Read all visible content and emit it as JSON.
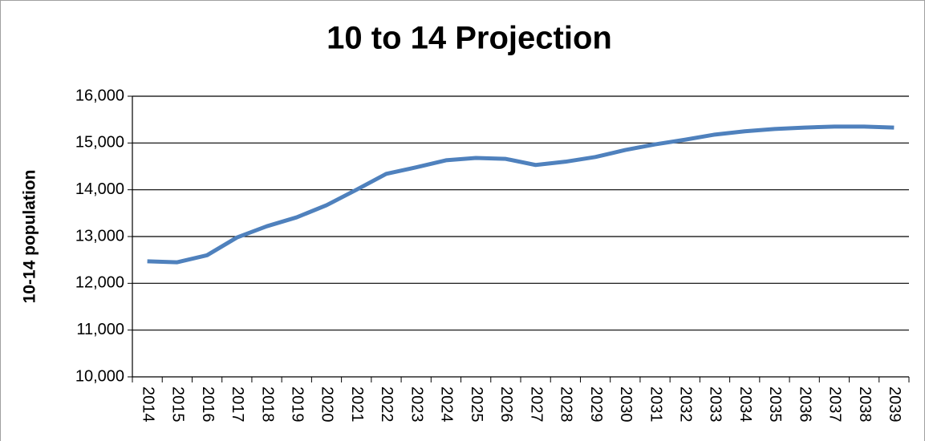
{
  "chart_data": {
    "type": "line",
    "title": "10 to 14 Projection",
    "y_label": "10-14 population",
    "categories": [
      "2014",
      "2015",
      "2016",
      "2017",
      "2018",
      "2019",
      "2020",
      "2021",
      "2022",
      "2023",
      "2024",
      "2025",
      "2026",
      "2027",
      "2028",
      "2029",
      "2030",
      "2031",
      "2032",
      "2033",
      "2034",
      "2035",
      "2036",
      "2037",
      "2038",
      "2039"
    ],
    "series": [
      {
        "name": "10-14 population",
        "color": "#4f81bd",
        "values": [
          12470,
          12450,
          12600,
          12980,
          13220,
          13410,
          13670,
          14000,
          14340,
          14480,
          14630,
          14680,
          14660,
          14530,
          14600,
          14700,
          14850,
          14970,
          15070,
          15180,
          15250,
          15300,
          15330,
          15350,
          15350,
          15330
        ]
      }
    ],
    "ylim": [
      10000,
      16000
    ],
    "yticks": [
      {
        "value": 10000,
        "label": "10,000"
      },
      {
        "value": 11000,
        "label": "11,000"
      },
      {
        "value": 12000,
        "label": "12,000"
      },
      {
        "value": 13000,
        "label": "13,000"
      },
      {
        "value": 14000,
        "label": "14,000"
      },
      {
        "value": 15000,
        "label": "15,000"
      },
      {
        "value": 16000,
        "label": "16,000"
      }
    ],
    "grid": true
  }
}
